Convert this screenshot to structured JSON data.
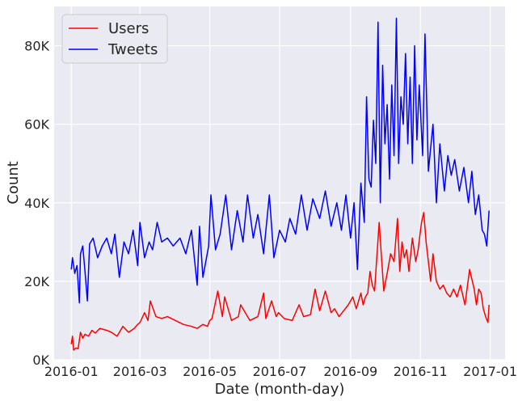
{
  "chart_data": {
    "type": "line",
    "xlabel": "Date (month-day)",
    "ylabel": "Count",
    "xlim": [
      "2015-12-17",
      "2017-01-14"
    ],
    "ylim": [
      0,
      90000
    ],
    "x_ticks": [
      {
        "date": "2016-01-01",
        "label": "2016-01"
      },
      {
        "date": "2016-03-01",
        "label": "2016-03"
      },
      {
        "date": "2016-05-01",
        "label": "2016-05"
      },
      {
        "date": "2016-07-01",
        "label": "2016-07"
      },
      {
        "date": "2016-09-01",
        "label": "2016-09"
      },
      {
        "date": "2016-11-01",
        "label": "2016-11"
      },
      {
        "date": "2017-01-01",
        "label": "2017-01"
      }
    ],
    "y_ticks": [
      {
        "value": 0,
        "label": "0K"
      },
      {
        "value": 20000,
        "label": "20K"
      },
      {
        "value": 40000,
        "label": "40K"
      },
      {
        "value": 60000,
        "label": "60K"
      },
      {
        "value": 80000,
        "label": "80K"
      }
    ],
    "grid": true,
    "background": "#eaeaf2",
    "legend_position": "top-left",
    "series": [
      {
        "name": "Users",
        "color": "#ff0000",
        "x": [
          "2016-01-01",
          "2016-01-02",
          "2016-01-03",
          "2016-01-05",
          "2016-01-07",
          "2016-01-09",
          "2016-01-11",
          "2016-01-13",
          "2016-01-16",
          "2016-01-19",
          "2016-01-22",
          "2016-01-26",
          "2016-02-01",
          "2016-02-05",
          "2016-02-10",
          "2016-02-15",
          "2016-02-20",
          "2016-02-25",
          "2016-02-28",
          "2016-03-01",
          "2016-03-05",
          "2016-03-08",
          "2016-03-10",
          "2016-03-15",
          "2016-03-20",
          "2016-03-25",
          "2016-04-01",
          "2016-04-08",
          "2016-04-15",
          "2016-04-20",
          "2016-04-25",
          "2016-04-29",
          "2016-05-01",
          "2016-05-03",
          "2016-05-08",
          "2016-05-12",
          "2016-05-14",
          "2016-05-20",
          "2016-05-26",
          "2016-05-28",
          "2016-06-05",
          "2016-06-12",
          "2016-06-17",
          "2016-06-19",
          "2016-06-24",
          "2016-06-28",
          "2016-06-30",
          "2016-07-05",
          "2016-07-12",
          "2016-07-18",
          "2016-07-22",
          "2016-07-28",
          "2016-08-01",
          "2016-08-05",
          "2016-08-10",
          "2016-08-15",
          "2016-08-18",
          "2016-08-22",
          "2016-08-26",
          "2016-08-30",
          "2016-09-03",
          "2016-09-06",
          "2016-09-10",
          "2016-09-12",
          "2016-09-14",
          "2016-09-16",
          "2016-09-18",
          "2016-09-20",
          "2016-09-22",
          "2016-09-26",
          "2016-09-30",
          "2016-10-03",
          "2016-10-06",
          "2016-10-09",
          "2016-10-12",
          "2016-10-14",
          "2016-10-16",
          "2016-10-18",
          "2016-10-20",
          "2016-10-22",
          "2016-10-25",
          "2016-10-28",
          "2016-10-30",
          "2016-11-02",
          "2016-11-04",
          "2016-11-06",
          "2016-11-08",
          "2016-11-10",
          "2016-11-12",
          "2016-11-15",
          "2016-11-18",
          "2016-11-21",
          "2016-11-24",
          "2016-11-27",
          "2016-11-30",
          "2016-12-03",
          "2016-12-06",
          "2016-12-10",
          "2016-12-14",
          "2016-12-18",
          "2016-12-20",
          "2016-12-22",
          "2016-12-24",
          "2016-12-26",
          "2016-12-28",
          "2016-12-30",
          "2016-12-31"
        ],
        "y": [
          4000,
          6000,
          2500,
          3000,
          2800,
          7000,
          5500,
          6500,
          6000,
          7500,
          6800,
          8000,
          7500,
          7000,
          6000,
          8500,
          7000,
          8000,
          9000,
          9500,
          12000,
          10000,
          15000,
          11000,
          10500,
          11000,
          10000,
          9000,
          8500,
          8000,
          9000,
          8500,
          10000,
          10500,
          17500,
          11000,
          16000,
          10000,
          11000,
          14000,
          10000,
          11000,
          17000,
          10500,
          15000,
          11000,
          12000,
          10500,
          10000,
          14000,
          11000,
          11500,
          18000,
          12500,
          17500,
          12000,
          13000,
          11000,
          12500,
          14000,
          16000,
          13000,
          17000,
          14000,
          16000,
          17000,
          22500,
          19000,
          17500,
          35000,
          17500,
          22000,
          27000,
          25000,
          36000,
          22500,
          30000,
          26000,
          28000,
          22500,
          31000,
          25000,
          28000,
          35000,
          37500,
          30000,
          25000,
          20000,
          27000,
          20000,
          18000,
          19000,
          17000,
          16000,
          18000,
          16000,
          19000,
          14000,
          23000,
          18000,
          14000,
          18000,
          17000,
          13000,
          11000,
          9500,
          14000
        ]
      },
      {
        "name": "Tweets",
        "color": "#0000ff",
        "x": [
          "2016-01-01",
          "2016-01-02",
          "2016-01-04",
          "2016-01-06",
          "2016-01-08",
          "2016-01-09",
          "2016-01-11",
          "2016-01-13",
          "2016-01-15",
          "2016-01-17",
          "2016-01-20",
          "2016-01-24",
          "2016-01-28",
          "2016-02-01",
          "2016-02-05",
          "2016-02-08",
          "2016-02-12",
          "2016-02-16",
          "2016-02-20",
          "2016-02-24",
          "2016-02-28",
          "2016-03-01",
          "2016-03-05",
          "2016-03-09",
          "2016-03-12",
          "2016-03-16",
          "2016-03-20",
          "2016-03-25",
          "2016-03-30",
          "2016-04-05",
          "2016-04-10",
          "2016-04-15",
          "2016-04-20",
          "2016-04-22",
          "2016-04-25",
          "2016-04-30",
          "2016-05-02",
          "2016-05-06",
          "2016-05-10",
          "2016-05-15",
          "2016-05-20",
          "2016-05-25",
          "2016-05-30",
          "2016-06-03",
          "2016-06-08",
          "2016-06-12",
          "2016-06-17",
          "2016-06-22",
          "2016-06-26",
          "2016-07-01",
          "2016-07-06",
          "2016-07-10",
          "2016-07-15",
          "2016-07-20",
          "2016-07-25",
          "2016-07-30",
          "2016-08-05",
          "2016-08-10",
          "2016-08-15",
          "2016-08-20",
          "2016-08-24",
          "2016-08-28",
          "2016-09-01",
          "2016-09-04",
          "2016-09-07",
          "2016-09-10",
          "2016-09-13",
          "2016-09-15",
          "2016-09-17",
          "2016-09-19",
          "2016-09-21",
          "2016-09-23",
          "2016-09-25",
          "2016-09-27",
          "2016-09-29",
          "2016-10-01",
          "2016-10-03",
          "2016-10-05",
          "2016-10-07",
          "2016-10-09",
          "2016-10-11",
          "2016-10-13",
          "2016-10-15",
          "2016-10-17",
          "2016-10-19",
          "2016-10-21",
          "2016-10-23",
          "2016-10-25",
          "2016-10-27",
          "2016-10-29",
          "2016-10-31",
          "2016-11-03",
          "2016-11-05",
          "2016-11-08",
          "2016-11-12",
          "2016-11-15",
          "2016-11-18",
          "2016-11-22",
          "2016-11-25",
          "2016-11-28",
          "2016-12-01",
          "2016-12-05",
          "2016-12-09",
          "2016-12-13",
          "2016-12-16",
          "2016-12-19",
          "2016-12-22",
          "2016-12-25",
          "2016-12-27",
          "2016-12-29",
          "2016-12-31"
        ],
        "y": [
          23000,
          26000,
          22000,
          24000,
          14500,
          27000,
          29000,
          22500,
          15000,
          29500,
          31000,
          26000,
          29000,
          31000,
          27000,
          32000,
          21000,
          30000,
          27000,
          33000,
          24000,
          35000,
          26000,
          30000,
          28000,
          35000,
          30000,
          31000,
          29000,
          31000,
          27000,
          33000,
          19000,
          34000,
          21000,
          29000,
          42000,
          28000,
          32000,
          42000,
          28000,
          38000,
          30000,
          42000,
          31000,
          37000,
          27000,
          42000,
          26000,
          33000,
          30000,
          36000,
          32000,
          42000,
          33000,
          41000,
          36000,
          43000,
          34000,
          40000,
          33000,
          42000,
          31000,
          40000,
          23000,
          45000,
          35000,
          67000,
          46000,
          44000,
          61000,
          50000,
          86000,
          40000,
          75000,
          55000,
          65000,
          46000,
          70000,
          52000,
          87000,
          50000,
          67000,
          60000,
          78000,
          55000,
          72000,
          50000,
          80000,
          56000,
          70000,
          52000,
          83000,
          48000,
          60000,
          40000,
          55000,
          43000,
          52000,
          47000,
          51000,
          43000,
          49000,
          40000,
          48000,
          37000,
          42000,
          33000,
          32000,
          29000,
          38000
        ]
      }
    ]
  }
}
